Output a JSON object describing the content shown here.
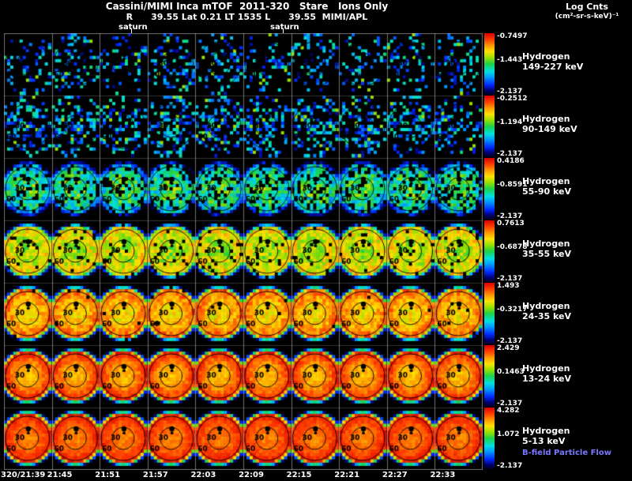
{
  "header": {
    "line1": "Cassini/MIMI Inca mTOF  2011-320   Stare   Ions Only",
    "line2": "R      39.55 Lat 0.21 LT 1535 L      39.55  MIMI/APL",
    "legend_title": "Log Cnts",
    "legend_units": "(cm²-sr-s-keV)⁻¹"
  },
  "annotations": {
    "saturn_left": "saturn",
    "saturn_right": "saturn",
    "bfield_label": "B-field Particle Flow",
    "bfield_color": "#7878ff"
  },
  "time_axis": {
    "labels": [
      "320/21:39",
      "21:45",
      "21:51",
      "21:57",
      "22:03",
      "22:09",
      "22:15",
      "22:21",
      "22:27",
      "22:33"
    ]
  },
  "chart_data": {
    "type": "heatmap",
    "title": "Cassini/MIMI Inca mTOF 2011-320 Stare Ions Only",
    "subtitle": "R 39.55 Lat 0.21 LT 1535 L 39.55 MIMI/APL",
    "colorbar_title": "Log Cnts (cm²-sr-s-keV)⁻¹",
    "columns": 10,
    "x_tick_labels": [
      "320/21:39",
      "21:45",
      "21:51",
      "21:57",
      "22:03",
      "22:09",
      "22:15",
      "22:21",
      "22:27",
      "22:33"
    ],
    "ring_labels": [
      "30",
      "60"
    ],
    "rows": [
      {
        "species": "Hydrogen",
        "energy": "149-227 keV",
        "cbar": {
          "max": "-0.7497",
          "mid": "-1.443",
          "min": "-2.137"
        },
        "render": {
          "speckle": true,
          "density": 0.3,
          "base": 0.3,
          "falloff": 0,
          "noise": 0
        }
      },
      {
        "species": "Hydrogen",
        "energy": "90-149 keV",
        "cbar": {
          "max": "-0.2512",
          "mid": "-1.194",
          "min": "-2.137"
        },
        "render": {
          "speckle": true,
          "density": 0.44,
          "base": 0.3,
          "falloff": 0,
          "noise": 0
        }
      },
      {
        "species": "Hydrogen",
        "energy": "55-90 keV",
        "cbar": {
          "max": "0.4186",
          "mid": "-0.8591",
          "min": "-2.137"
        },
        "render": {
          "speckle": false,
          "density": 0.78,
          "base": 0.52,
          "falloff": 0.35,
          "noise": 0.3
        }
      },
      {
        "species": "Hydrogen",
        "energy": "35-55 keV",
        "cbar": {
          "max": "0.7613",
          "mid": "-0.6878",
          "min": "-2.137"
        },
        "render": {
          "speckle": false,
          "density": 0.93,
          "base": 0.6,
          "falloff": -0.22,
          "noise": 0.22
        }
      },
      {
        "species": "Hydrogen",
        "energy": "24-35 keV",
        "cbar": {
          "max": "1.493",
          "mid": "-0.3217",
          "min": "-2.137"
        },
        "render": {
          "speckle": false,
          "density": 0.99,
          "base": 0.7,
          "falloff": -0.25,
          "noise": 0.16
        }
      },
      {
        "species": "Hydrogen",
        "energy": "13-24 keV",
        "cbar": {
          "max": "2.429",
          "mid": "0.1463",
          "min": "-2.137"
        },
        "render": {
          "speckle": false,
          "density": 1.0,
          "base": 0.74,
          "falloff": -0.3,
          "noise": 0.1
        }
      },
      {
        "species": "Hydrogen",
        "energy": "5-13 keV",
        "cbar": {
          "max": "4.282",
          "mid": "1.072",
          "min": "-2.137"
        },
        "render": {
          "speckle": false,
          "density": 1.0,
          "base": 0.82,
          "falloff": -0.17,
          "noise": 0.08
        }
      }
    ],
    "colormap_stops": [
      [
        0.0,
        "#00001e"
      ],
      [
        0.07,
        "#00006e"
      ],
      [
        0.16,
        "#0028ff"
      ],
      [
        0.28,
        "#0096ff"
      ],
      [
        0.38,
        "#00e1e1"
      ],
      [
        0.5,
        "#1ed246"
      ],
      [
        0.6,
        "#96e100"
      ],
      [
        0.7,
        "#ffe100"
      ],
      [
        0.8,
        "#ff9600"
      ],
      [
        0.9,
        "#ff3c00"
      ],
      [
        1.0,
        "#d70000"
      ]
    ]
  }
}
